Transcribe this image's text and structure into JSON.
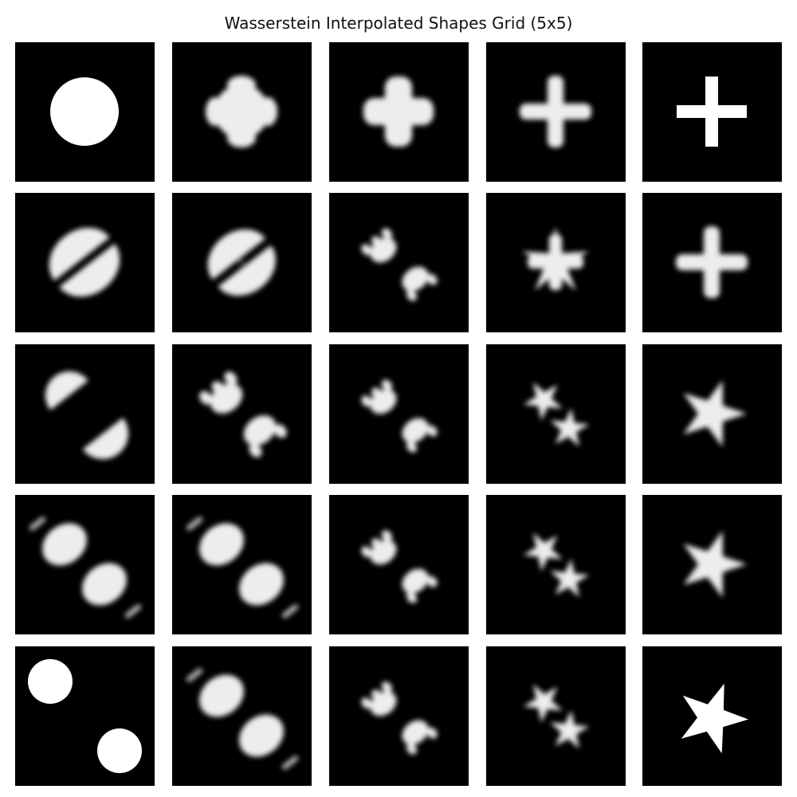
{
  "figure": {
    "title": "Wasserstein Interpolated Shapes Grid (5x5)"
  },
  "grid": {
    "rows": 5,
    "cols": 5,
    "cells": [
      {
        "id": "r1c1",
        "depicts": "circle-disk",
        "sharp": true
      },
      {
        "id": "r1c2",
        "depicts": "rounded-cross-blend",
        "sharp": false
      },
      {
        "id": "r1c3",
        "depicts": "soft-cross",
        "sharp": false
      },
      {
        "id": "r1c4",
        "depicts": "blurred-plus",
        "sharp": false
      },
      {
        "id": "r1c5",
        "depicts": "plus-sign",
        "sharp": true
      },
      {
        "id": "r2c1",
        "depicts": "split-ellipse",
        "sharp": false
      },
      {
        "id": "r2c2",
        "depicts": "split-ellipse-lobed",
        "sharp": false
      },
      {
        "id": "r2c3",
        "depicts": "lobed-blob-pair",
        "sharp": false
      },
      {
        "id": "r2c4",
        "depicts": "star-cross-blend",
        "sharp": false
      },
      {
        "id": "r2c5",
        "depicts": "blurred-plus",
        "sharp": false
      },
      {
        "id": "r3c1",
        "depicts": "two-half-disks",
        "sharp": false
      },
      {
        "id": "r3c2",
        "depicts": "two-lobed-blobs",
        "sharp": false
      },
      {
        "id": "r3c3",
        "depicts": "lobed-blob-pair",
        "sharp": false
      },
      {
        "id": "r3c4",
        "depicts": "star-blob-pair",
        "sharp": false
      },
      {
        "id": "r3c5",
        "depicts": "blurred-star",
        "sharp": false
      },
      {
        "id": "r4c1",
        "depicts": "two-striped-blobs",
        "sharp": false
      },
      {
        "id": "r4c2",
        "depicts": "two-striped-blobs",
        "sharp": false
      },
      {
        "id": "r4c3",
        "depicts": "lobed-blob-pair",
        "sharp": false
      },
      {
        "id": "r4c4",
        "depicts": "star-blob-pair",
        "sharp": false
      },
      {
        "id": "r4c5",
        "depicts": "blurred-star",
        "sharp": false
      },
      {
        "id": "r5c1",
        "depicts": "two-disks",
        "sharp": true
      },
      {
        "id": "r5c2",
        "depicts": "two-striped-blobs",
        "sharp": false
      },
      {
        "id": "r5c3",
        "depicts": "lobed-blob-pair",
        "sharp": false
      },
      {
        "id": "r5c4",
        "depicts": "star-blob-pair",
        "sharp": false
      },
      {
        "id": "r5c5",
        "depicts": "five-point-star",
        "sharp": true
      }
    ]
  },
  "colors": {
    "background": "#ffffff",
    "cell_background": "#000000",
    "shape": "#ffffff",
    "title_text": "#111111"
  }
}
